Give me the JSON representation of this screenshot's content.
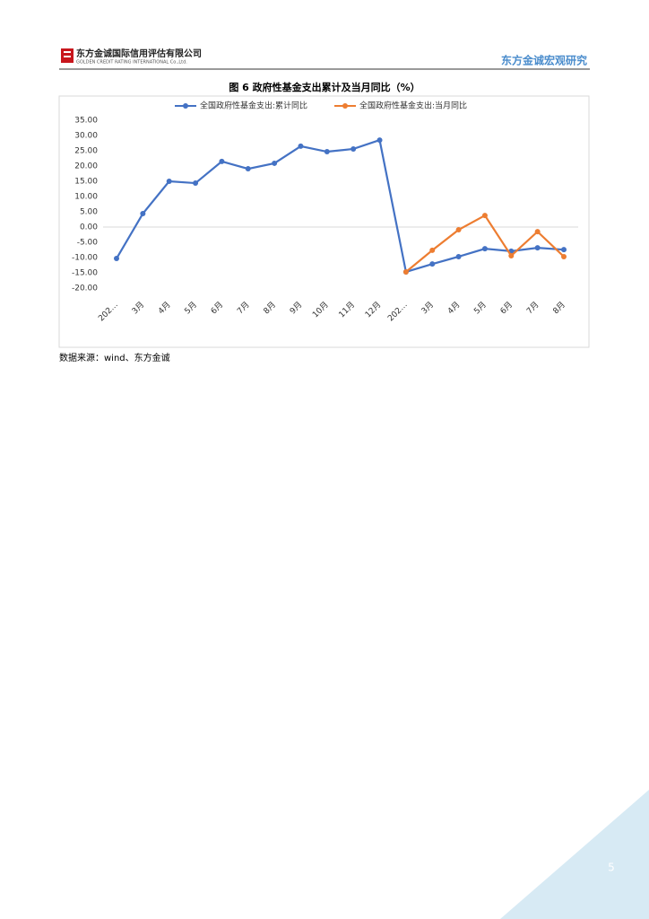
{
  "header": {
    "company": "东方金诚国际信用评估有限公司",
    "company_en": "GOLDEN CREDIT RATING INTERNATIONAL Co.,Ltd.",
    "section": "东方金诚宏观研究"
  },
  "chart_data": {
    "type": "line",
    "title": "图 6  政府性基金支出累计及当月同比（%）",
    "categories": [
      "202…",
      "3月",
      "4月",
      "5月",
      "6月",
      "7月",
      "8月",
      "9月",
      "10月",
      "11月",
      "12月",
      "202…",
      "3月",
      "4月",
      "5月",
      "6月",
      "7月",
      "8月"
    ],
    "series": [
      {
        "name": "全国政府性基金支出:累计同比",
        "color": "#4472c4",
        "values": [
          -10.3,
          4.4,
          15.0,
          14.4,
          21.5,
          19.1,
          20.9,
          26.5,
          24.7,
          25.6,
          28.5,
          -14.7,
          -12.1,
          -9.7,
          -7.1,
          -7.9,
          -6.8,
          -7.4
        ]
      },
      {
        "name": "全国政府性基金支出:当月同比",
        "color": "#ed7d31",
        "values": [
          null,
          null,
          null,
          null,
          null,
          null,
          null,
          null,
          null,
          null,
          null,
          -14.7,
          -7.6,
          -0.9,
          3.8,
          -9.4,
          -1.5,
          -9.7
        ]
      }
    ],
    "ylim": [
      -20,
      35
    ],
    "yticks": [
      {
        "value": 35,
        "label": "35.00"
      },
      {
        "value": 30,
        "label": "30.00"
      },
      {
        "value": 25,
        "label": "25.00"
      },
      {
        "value": 20,
        "label": "20.00"
      },
      {
        "value": 15,
        "label": "15.00"
      },
      {
        "value": 10,
        "label": "10.00"
      },
      {
        "value": 5,
        "label": "5.00"
      },
      {
        "value": 0,
        "label": "0.00"
      },
      {
        "value": -5,
        "label": "-5.00"
      },
      {
        "value": -10,
        "label": "-10.00"
      },
      {
        "value": -15,
        "label": "-15.00"
      },
      {
        "value": -20,
        "label": "-20.00"
      }
    ],
    "grid": false,
    "legend": "top"
  },
  "source": "数据来源：wind、东方金诚",
  "page_number": "5"
}
